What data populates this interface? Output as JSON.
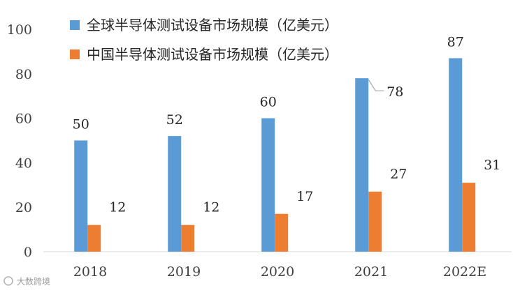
{
  "chart_data": {
    "type": "bar",
    "categories": [
      "2018",
      "2019",
      "2020",
      "2021",
      "2022E"
    ],
    "series": [
      {
        "name": "全球半导体测试设备市场规模（亿美元）",
        "values": [
          50,
          52,
          60,
          78,
          87
        ],
        "labels": [
          "50",
          "52",
          "60",
          "78",
          "87"
        ],
        "color": "#5B9BD5"
      },
      {
        "name": "中国半导体测试设备市场规模（亿美元）",
        "values": [
          12,
          12,
          17,
          27,
          31
        ],
        "labels": [
          "12",
          "12",
          "17",
          "27",
          "31"
        ],
        "color": "#ED7D31"
      }
    ],
    "ylim": [
      0,
      100
    ],
    "yticks": [
      "0",
      "20",
      "40",
      "60",
      "80",
      "100"
    ],
    "title": "",
    "xlabel": "",
    "ylabel": "",
    "legend": "top-center",
    "grid": false
  },
  "watermark": "大数跨境"
}
